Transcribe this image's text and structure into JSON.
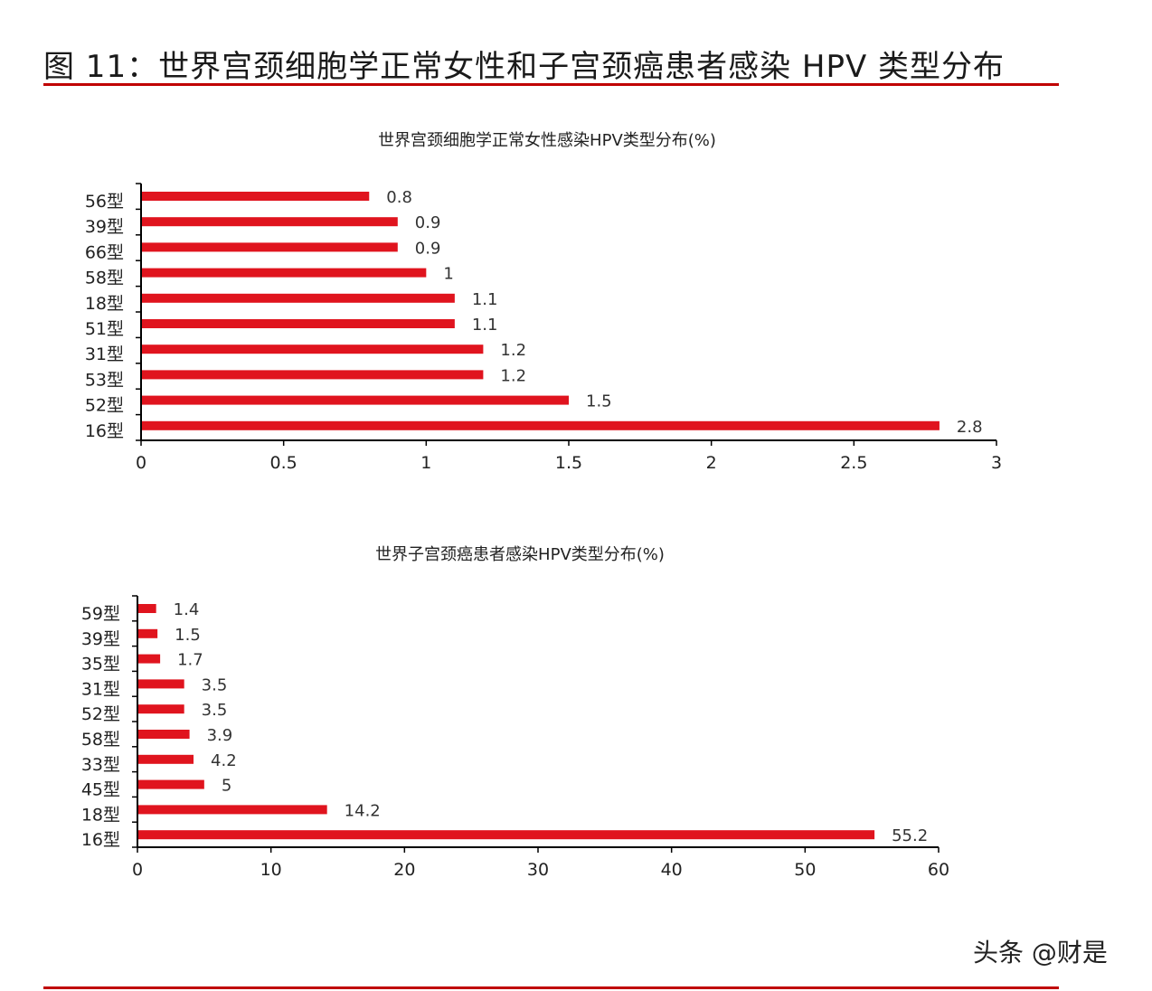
{
  "figure_title": "图 11：世界宫颈细胞学正常女性和子宫颈癌患者感染 HPV 类型分布",
  "watermark": "头条 @财是",
  "colors": {
    "bar": "#e0141e",
    "rule": "#c00000",
    "axis": "#000000"
  },
  "chart_data": [
    {
      "type": "bar",
      "orientation": "horizontal",
      "title": "世界宫颈细胞学正常女性感染HPV类型分布(%)",
      "categories": [
        "56型",
        "39型",
        "66型",
        "58型",
        "18型",
        "51型",
        "31型",
        "53型",
        "52型",
        "16型"
      ],
      "values": [
        0.8,
        0.9,
        0.9,
        1,
        1.1,
        1.1,
        1.2,
        1.2,
        1.5,
        2.8
      ],
      "data_labels": [
        "0.8",
        "0.9",
        "0.9",
        "1",
        "1.1",
        "1.1",
        "1.2",
        "1.2",
        "1.5",
        "2.8"
      ],
      "xlim": [
        0,
        3
      ],
      "xticks": [
        "0",
        "0.5",
        "1",
        "1.5",
        "2",
        "2.5",
        "3"
      ],
      "xtick_values": [
        0,
        0.5,
        1,
        1.5,
        2,
        2.5,
        3
      ],
      "grid": false
    },
    {
      "type": "bar",
      "orientation": "horizontal",
      "title": "世界子宫颈癌患者感染HPV类型分布(%)",
      "categories": [
        "59型",
        "39型",
        "35型",
        "31型",
        "52型",
        "58型",
        "33型",
        "45型",
        "18型",
        "16型"
      ],
      "values": [
        1.4,
        1.5,
        1.7,
        3.5,
        3.5,
        3.9,
        4.2,
        5,
        14.2,
        55.2
      ],
      "data_labels": [
        "1.4",
        "1.5",
        "1.7",
        "3.5",
        "3.5",
        "3.9",
        "4.2",
        "5",
        "14.2",
        "55.2"
      ],
      "xlim": [
        0,
        60
      ],
      "xticks": [
        "0",
        "10",
        "20",
        "30",
        "40",
        "50",
        "60"
      ],
      "xtick_values": [
        0,
        10,
        20,
        30,
        40,
        50,
        60
      ],
      "grid": false
    }
  ]
}
